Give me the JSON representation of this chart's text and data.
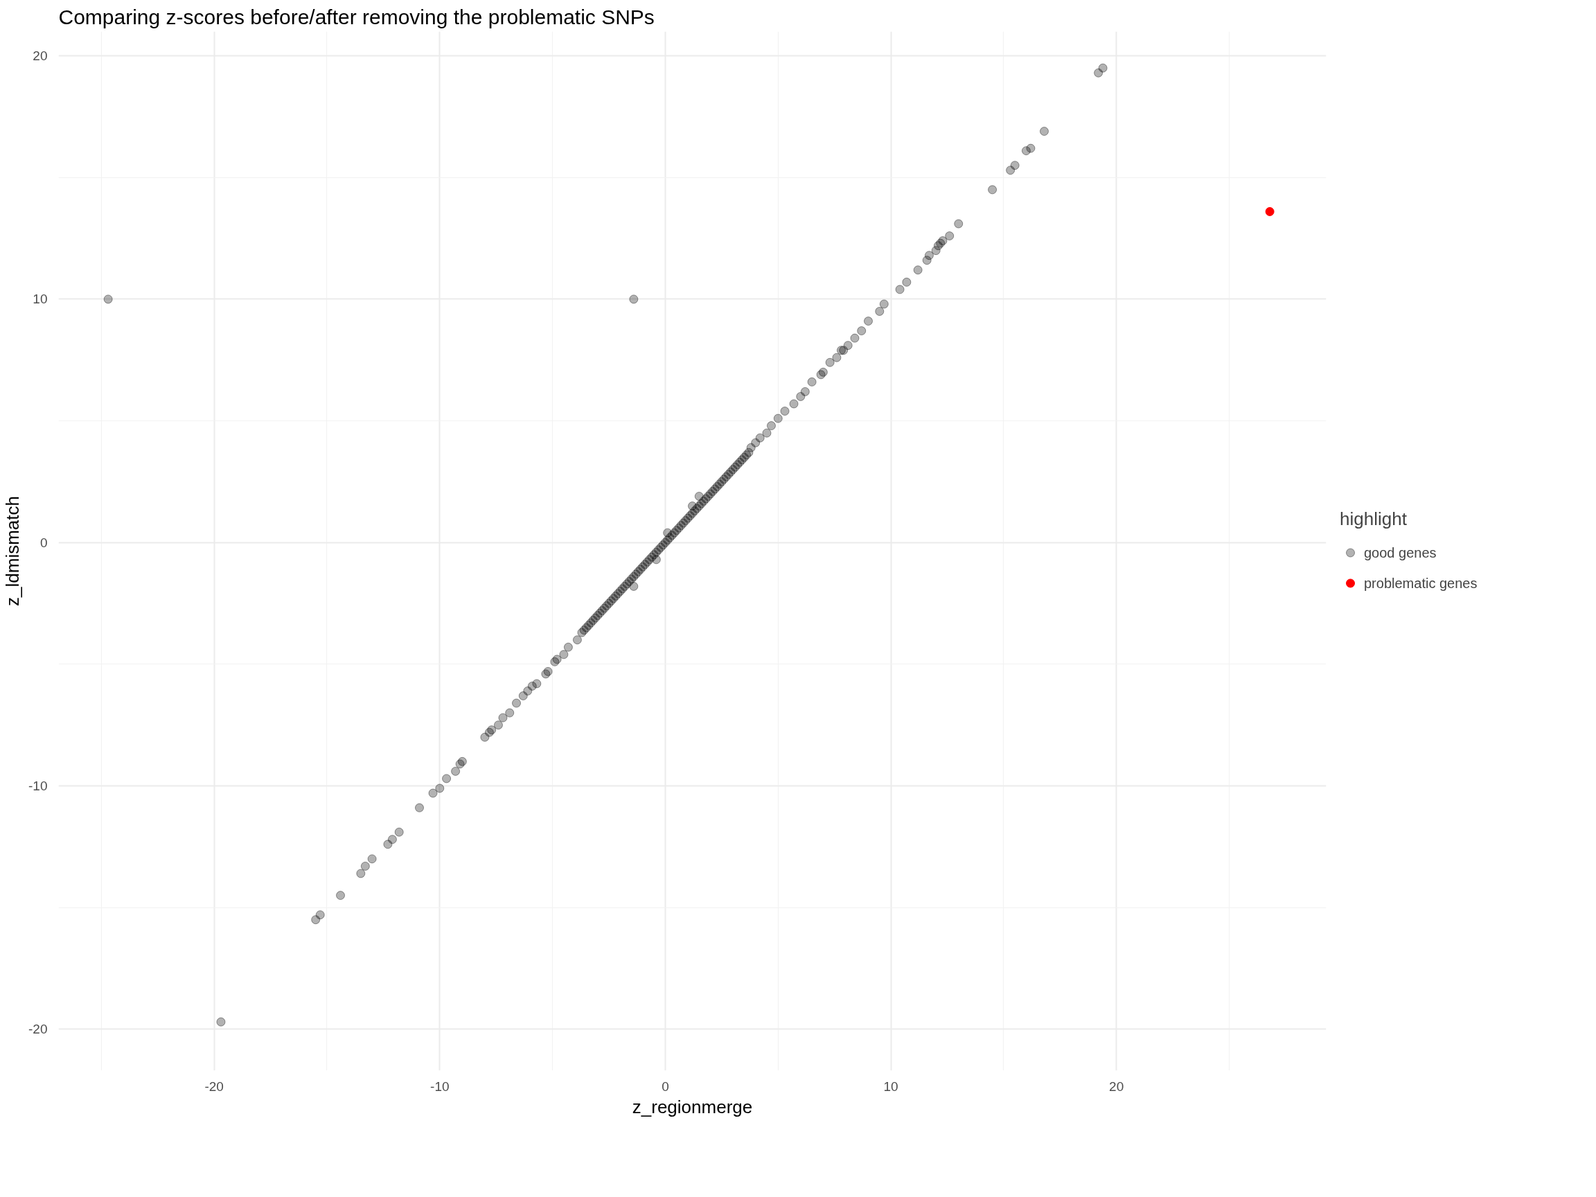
{
  "chart_data": {
    "type": "scatter",
    "title": "Comparing z-scores before/after removing the problematic SNPs",
    "xlabel": "z_regionmerge",
    "ylabel": "z_ldmismatch",
    "legend_title": "highlight",
    "series": [
      {
        "name": "good genes",
        "color": "#000000",
        "x": [
          -24.7,
          -19.7,
          -1.4,
          19.4,
          19.2,
          16.8,
          16.2,
          16.0,
          15.5,
          15.3,
          14.5,
          13.0,
          12.6,
          12.3,
          12.2,
          12.1,
          12.0,
          11.7,
          11.6,
          11.2,
          10.7,
          10.4,
          9.7,
          9.5,
          9.0,
          8.7,
          8.4,
          8.1,
          7.8,
          7.9,
          7.6,
          7.3,
          6.9,
          7.0,
          6.5,
          6.2,
          6.0,
          5.7,
          5.3,
          5.0,
          4.7,
          4.5,
          4.2,
          4.0,
          3.8,
          -3.7,
          -3.6,
          -3.5,
          -3.4,
          -3.3,
          -3.2,
          -3.1,
          -3.0,
          -2.9,
          -2.8,
          -2.7,
          -2.6,
          -2.5,
          -2.4,
          -2.3,
          -2.2,
          -2.1,
          -2.0,
          -1.9,
          -1.8,
          -1.7,
          -1.6,
          -1.5,
          -1.4,
          -1.3,
          -1.2,
          -1.1,
          -1.0,
          -0.9,
          -0.8,
          -0.7,
          -0.6,
          -0.5,
          -0.4,
          -0.3,
          -0.2,
          -0.1,
          0.0,
          0.1,
          0.2,
          0.3,
          0.4,
          0.5,
          0.6,
          0.7,
          0.8,
          0.9,
          1.0,
          1.1,
          1.2,
          1.3,
          1.4,
          1.5,
          1.6,
          1.7,
          1.8,
          1.9,
          2.0,
          2.1,
          2.2,
          2.3,
          2.4,
          2.5,
          2.6,
          2.7,
          2.8,
          2.9,
          3.0,
          3.1,
          3.2,
          3.3,
          3.4,
          3.5,
          3.6,
          3.7,
          1.5,
          1.2,
          0.1,
          -0.4,
          -1.4,
          -3.9,
          -4.3,
          -4.5,
          -4.8,
          -4.9,
          -5.2,
          -5.3,
          -5.7,
          -5.9,
          -6.1,
          -6.3,
          -6.6,
          -6.9,
          -7.2,
          -7.4,
          -7.7,
          -7.8,
          -8.0,
          -9.0,
          -9.1,
          -9.3,
          -9.7,
          -10.0,
          -10.3,
          -10.9,
          -11.8,
          -12.1,
          -12.3,
          -13.0,
          -13.3,
          -13.5,
          -14.4,
          -15.3,
          -15.5
        ],
        "values": [
          10.0,
          -19.7,
          10.0,
          19.5,
          19.3,
          16.9,
          16.2,
          16.1,
          15.5,
          15.3,
          14.5,
          13.1,
          12.6,
          12.4,
          12.3,
          12.2,
          12.0,
          11.8,
          11.6,
          11.2,
          10.7,
          10.4,
          9.8,
          9.5,
          9.1,
          8.7,
          8.4,
          8.1,
          7.9,
          7.9,
          7.6,
          7.4,
          6.9,
          7.0,
          6.6,
          6.2,
          6.0,
          5.7,
          5.4,
          5.1,
          4.8,
          4.5,
          4.3,
          4.1,
          3.9,
          -3.7,
          -3.6,
          -3.5,
          -3.4,
          -3.3,
          -3.2,
          -3.1,
          -3.0,
          -2.9,
          -2.8,
          -2.7,
          -2.6,
          -2.5,
          -2.4,
          -2.3,
          -2.2,
          -2.1,
          -2.0,
          -1.9,
          -1.8,
          -1.7,
          -1.6,
          -1.5,
          -1.4,
          -1.3,
          -1.2,
          -1.1,
          -1.0,
          -0.9,
          -0.8,
          -0.7,
          -0.6,
          -0.5,
          -0.4,
          -0.3,
          -0.2,
          -0.1,
          0.0,
          0.1,
          0.2,
          0.3,
          0.4,
          0.5,
          0.6,
          0.7,
          0.8,
          0.9,
          1.0,
          1.1,
          1.2,
          1.3,
          1.4,
          1.5,
          1.6,
          1.7,
          1.8,
          1.9,
          2.0,
          2.1,
          2.2,
          2.3,
          2.4,
          2.5,
          2.6,
          2.7,
          2.8,
          2.9,
          3.0,
          3.1,
          3.2,
          3.3,
          3.4,
          3.5,
          3.6,
          3.7,
          1.9,
          1.5,
          0.4,
          -0.7,
          -1.8,
          -4.0,
          -4.3,
          -4.6,
          -4.8,
          -4.9,
          -5.3,
          -5.4,
          -5.8,
          -5.9,
          -6.1,
          -6.3,
          -6.6,
          -7.0,
          -7.2,
          -7.5,
          -7.7,
          -7.8,
          -8.0,
          -9.0,
          -9.1,
          -9.4,
          -9.7,
          -10.1,
          -10.3,
          -10.9,
          -11.9,
          -12.2,
          -12.4,
          -13.0,
          -13.3,
          -13.6,
          -14.5,
          -15.3,
          -15.5
        ]
      },
      {
        "name": "problematic genes",
        "color": "#ff0000",
        "x": [
          26.8
        ],
        "values": [
          13.6
        ]
      }
    ],
    "xlim": [
      -26.9,
      29.3
    ],
    "ylim": [
      -21.7,
      21.0
    ],
    "xticks": [
      -20,
      -10,
      0,
      10,
      20
    ],
    "yticks": [
      -20,
      -10,
      0,
      10,
      20
    ],
    "grid": true,
    "legend": "right",
    "marker": "circle"
  }
}
